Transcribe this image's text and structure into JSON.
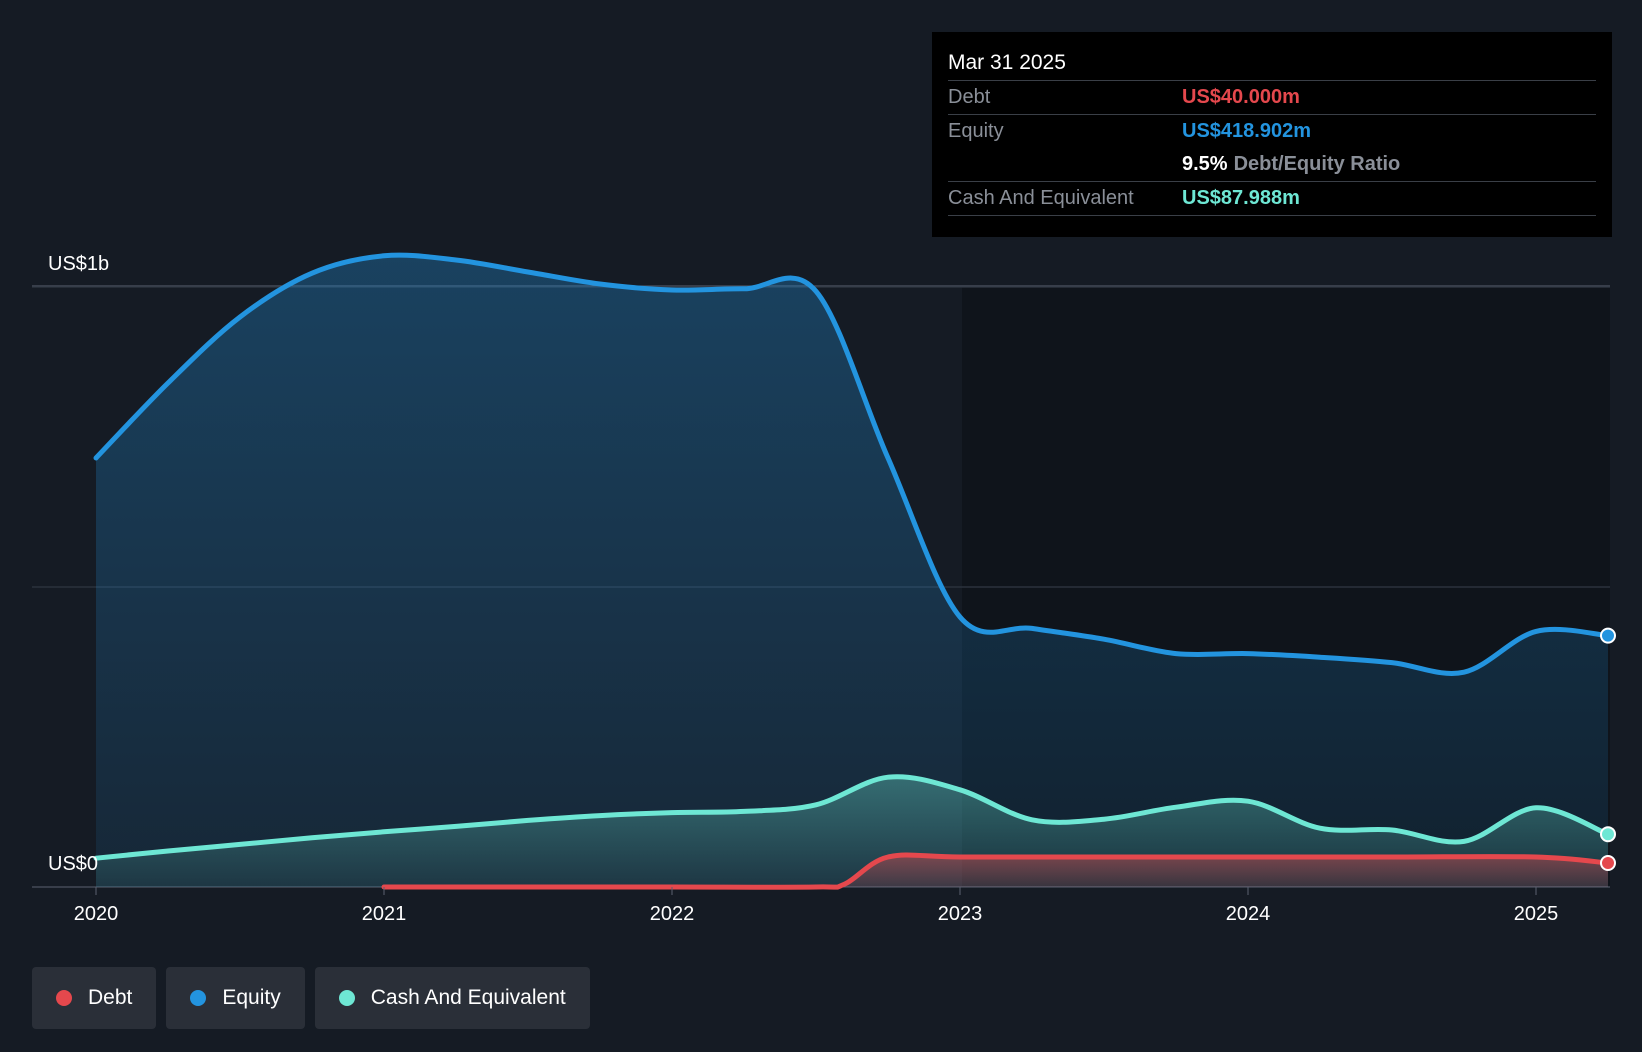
{
  "chart_data": {
    "type": "area",
    "y_axis": {
      "top_label": "US$1b",
      "bottom_label": "US$0",
      "ylim_millions": [
        0,
        1100
      ]
    },
    "x_ticks": [
      {
        "label": "2020",
        "x": 2020.0
      },
      {
        "label": "2021",
        "x": 2021.0
      },
      {
        "label": "2022",
        "x": 2022.0
      },
      {
        "label": "2023",
        "x": 2023.0
      },
      {
        "label": "2024",
        "x": 2024.0
      },
      {
        "label": "2025",
        "x": 2025.0
      }
    ],
    "xlim": [
      2019.78,
      2025.25
    ],
    "series": [
      {
        "name": "Equity",
        "color": "#2394df",
        "points": [
          [
            2020.0,
            715
          ],
          [
            2020.25,
            840
          ],
          [
            2020.5,
            950
          ],
          [
            2020.75,
            1023
          ],
          [
            2021.0,
            1052
          ],
          [
            2021.25,
            1045
          ],
          [
            2021.5,
            1025
          ],
          [
            2021.75,
            1005
          ],
          [
            2022.0,
            995
          ],
          [
            2022.25,
            997
          ],
          [
            2022.5,
            993
          ],
          [
            2022.75,
            715
          ],
          [
            2023.0,
            450
          ],
          [
            2023.25,
            431
          ],
          [
            2023.5,
            413
          ],
          [
            2023.75,
            389
          ],
          [
            2024.0,
            389
          ],
          [
            2024.25,
            383
          ],
          [
            2024.5,
            374
          ],
          [
            2024.75,
            358
          ],
          [
            2025.0,
            426
          ],
          [
            2025.25,
            419
          ]
        ]
      },
      {
        "name": "Cash And Equivalent",
        "color": "#6ee7d4",
        "points": [
          [
            2020.0,
            48
          ],
          [
            2020.25,
            60
          ],
          [
            2020.5,
            71
          ],
          [
            2020.75,
            82
          ],
          [
            2021.0,
            92
          ],
          [
            2021.25,
            101
          ],
          [
            2021.5,
            111
          ],
          [
            2021.75,
            119
          ],
          [
            2022.0,
            124
          ],
          [
            2022.25,
            126
          ],
          [
            2022.5,
            137
          ],
          [
            2022.75,
            183
          ],
          [
            2023.0,
            162
          ],
          [
            2023.25,
            112
          ],
          [
            2023.5,
            113
          ],
          [
            2023.75,
            133
          ],
          [
            2024.0,
            143
          ],
          [
            2024.25,
            98
          ],
          [
            2024.5,
            95
          ],
          [
            2024.75,
            76
          ],
          [
            2025.0,
            132
          ],
          [
            2025.25,
            88
          ]
        ]
      },
      {
        "name": "Debt",
        "color": "#e5484d",
        "points": [
          [
            2021.0,
            0
          ],
          [
            2021.5,
            0
          ],
          [
            2022.0,
            0
          ],
          [
            2022.5,
            0
          ],
          [
            2022.6,
            5
          ],
          [
            2022.75,
            50
          ],
          [
            2023.0,
            50
          ],
          [
            2023.5,
            50
          ],
          [
            2024.0,
            50
          ],
          [
            2024.5,
            50
          ],
          [
            2025.0,
            50
          ],
          [
            2025.25,
            40
          ]
        ]
      }
    ],
    "gridlines_millions": [
      500,
      1000
    ]
  },
  "tooltip": {
    "date": "Mar 31 2025",
    "debt_label": "Debt",
    "debt_value": "US$40.000m",
    "equity_label": "Equity",
    "equity_value": "US$418.902m",
    "ratio_value": "9.5%",
    "ratio_label": "Debt/Equity Ratio",
    "cash_label": "Cash And Equivalent",
    "cash_value": "US$87.988m"
  },
  "legend": {
    "debt": "Debt",
    "equity": "Equity",
    "cash": "Cash And Equivalent"
  },
  "colors": {
    "debt": "#e5484d",
    "equity": "#2394df",
    "cash": "#6ee7d4",
    "background": "#151b24"
  }
}
